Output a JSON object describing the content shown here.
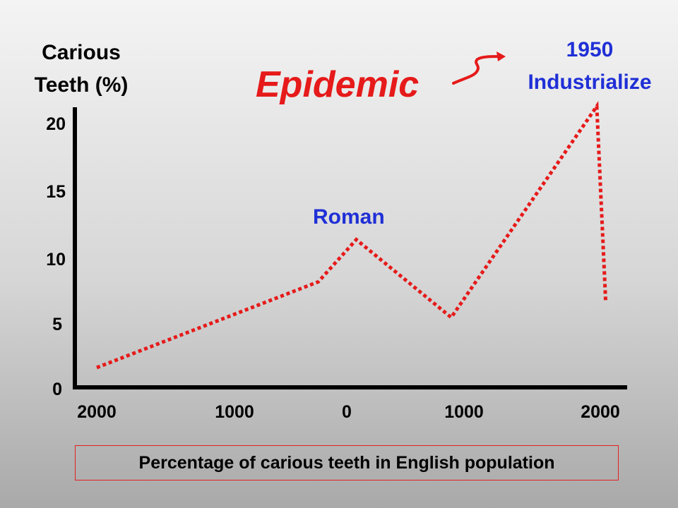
{
  "chart_data": {
    "type": "line",
    "ylabel_line1": "Carious",
    "ylabel_line2": "Teeth (%)",
    "yticks": [
      "0",
      "5",
      "10",
      "15",
      "20"
    ],
    "ylim": [
      0,
      20
    ],
    "xticks": [
      "2000",
      "1000",
      "0",
      "1000",
      "2000"
    ],
    "x_unit": "year (BC to AD)",
    "xlim": [
      -2000,
      2000
    ],
    "series": [
      {
        "color": "#e61a1a",
        "style": "dotted",
        "x": [
          -2000,
          -250,
          50,
          800,
          1950,
          2020
        ],
        "y": [
          1.5,
          8.0,
          11.2,
          5.3,
          21.3,
          6.5
        ]
      }
    ],
    "annotations": {
      "epidemic": "Epidemic",
      "year_1950": "1950",
      "industrialize": "Industrialize",
      "roman": "Roman"
    },
    "caption": "Percentage of carious teeth in English population",
    "grid": false,
    "legend": "none"
  },
  "colors": {
    "series": "#e61a1a",
    "annotation_red": "#e61a1a",
    "annotation_blue": "#1f2fd6",
    "axis": "#000000"
  }
}
